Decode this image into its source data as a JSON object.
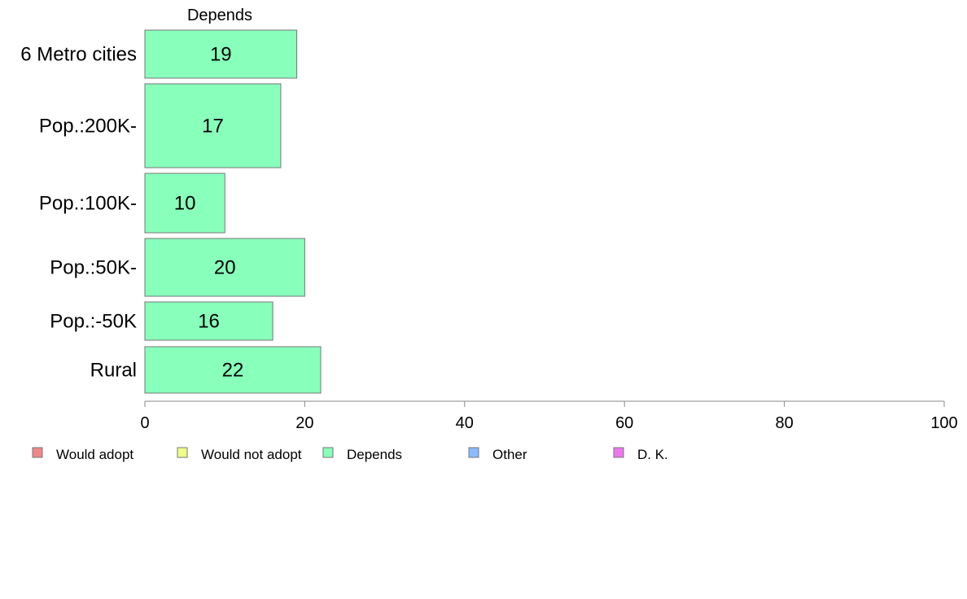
{
  "chart_data": {
    "type": "bar",
    "orientation": "horizontal",
    "categories": [
      "6 Metro cities",
      "Pop.:200K-",
      "Pop.:100K-",
      "Pop.:50K-",
      "Pop.:-50K",
      "Rural"
    ],
    "series": [
      {
        "name": "Depends",
        "values": [
          19,
          17,
          10,
          20,
          16,
          22
        ],
        "color": "#88ffbb"
      }
    ],
    "panel_title": "Depends",
    "xlim": [
      0,
      100
    ],
    "xticks": [
      0,
      20,
      40,
      60,
      80,
      100
    ],
    "grid": false,
    "legend": {
      "placement": "bottom-left",
      "entries": [
        {
          "label": "Would adopt",
          "color": "#f08888"
        },
        {
          "label": "Would not adopt",
          "color": "#eeff88"
        },
        {
          "label": "Depends",
          "color": "#88ffbb"
        },
        {
          "label": "Other",
          "color": "#88bbff"
        },
        {
          "label": "D. K.",
          "color": "#ee77ee"
        }
      ]
    },
    "colors": {
      "bar_stroke": "#777777",
      "axis": "#888888"
    }
  }
}
